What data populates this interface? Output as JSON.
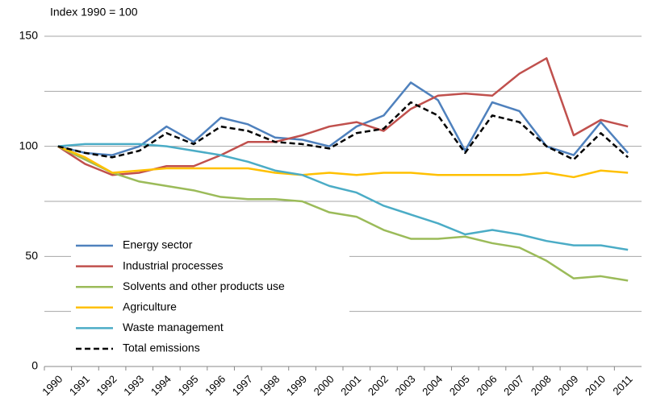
{
  "chart_data": {
    "type": "line",
    "subtitle": "Index 1990 = 100",
    "categories": [
      "1990",
      "1991",
      "1992",
      "1993",
      "1994",
      "1995",
      "1996",
      "1997",
      "1998",
      "1999",
      "2000",
      "2001",
      "2002",
      "2003",
      "2004",
      "2005",
      "2006",
      "2007",
      "2008",
      "2009",
      "2010",
      "2011"
    ],
    "series": [
      {
        "name": "Energy sector",
        "color": "#4f81bd",
        "values": [
          100,
          97,
          96,
          100,
          109,
          102,
          113,
          110,
          104,
          103,
          100,
          109,
          114,
          129,
          121,
          98,
          120,
          116,
          100,
          96,
          111,
          97
        ]
      },
      {
        "name": "Industrial processes",
        "color": "#c0504d",
        "values": [
          100,
          92,
          87,
          88,
          91,
          91,
          96,
          102,
          102,
          105,
          109,
          111,
          107,
          117,
          123,
          124,
          123,
          133,
          140,
          105,
          112,
          109
        ]
      },
      {
        "name": "Solvents and other products use",
        "color": "#9bbb59",
        "values": [
          100,
          94,
          88,
          84,
          82,
          80,
          77,
          76,
          76,
          75,
          70,
          68,
          62,
          58,
          58,
          59,
          56,
          54,
          48,
          40,
          41,
          39
        ]
      },
      {
        "name": "Agriculture",
        "color": "#ffc000",
        "values": [
          100,
          95,
          88,
          89,
          90,
          90,
          90,
          90,
          88,
          87,
          88,
          87,
          88,
          88,
          87,
          87,
          87,
          87,
          88,
          86,
          89,
          88
        ]
      },
      {
        "name": "Waste management",
        "color": "#4bacc6",
        "values": [
          100,
          101,
          101,
          101,
          100,
          98,
          96,
          93,
          89,
          87,
          82,
          79,
          73,
          69,
          65,
          60,
          62,
          60,
          57,
          55,
          55,
          53
        ]
      },
      {
        "name": "Total emissions",
        "color": "#000000",
        "dashed": true,
        "values": [
          100,
          97,
          95,
          98,
          106,
          101,
          109,
          107,
          102,
          101,
          99,
          106,
          108,
          120,
          114,
          97,
          114,
          111,
          100,
          94,
          106,
          95
        ]
      }
    ],
    "ylim": [
      0,
      150
    ],
    "yticks": [
      0,
      50,
      100,
      150
    ],
    "ygrid": [
      25,
      50,
      75,
      100,
      125,
      150
    ],
    "legend": "lower left"
  }
}
